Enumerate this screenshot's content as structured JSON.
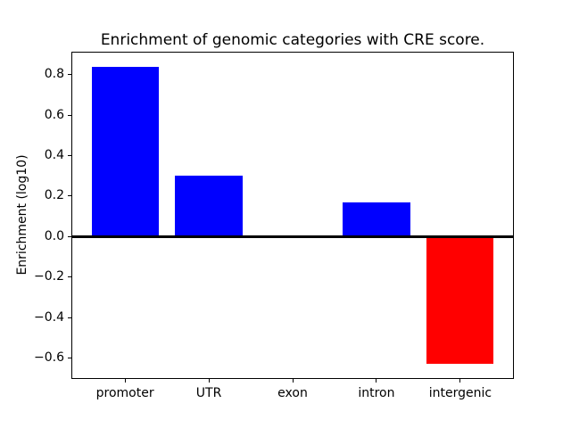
{
  "chart_data": {
    "type": "bar",
    "title": "Enrichment of genomic categories with CRE score.",
    "xlabel": "",
    "ylabel": "Enrichment (log10)",
    "categories": [
      "promoter",
      "UTR",
      "exon",
      "intron",
      "intergenic"
    ],
    "values": [
      0.84,
      0.3,
      0.0,
      0.17,
      -0.63
    ],
    "series": [
      {
        "name": "enrichment",
        "values": [
          0.84,
          0.3,
          0.0,
          0.17,
          -0.63
        ]
      }
    ],
    "positive_color": "#0000ff",
    "negative_color": "#ff0000",
    "axes_background": "#ffffff",
    "ylim": [
      -0.7035,
      0.9135
    ],
    "xlim": [
      -0.64,
      4.64
    ],
    "bar_width": 0.8,
    "yticks": [
      {
        "value": 0.8,
        "label": "0.8"
      },
      {
        "value": 0.6,
        "label": "0.6"
      },
      {
        "value": 0.4,
        "label": "0.4"
      },
      {
        "value": 0.2,
        "label": "0.2"
      },
      {
        "value": 0.0,
        "label": "0.0"
      },
      {
        "value": -0.2,
        "label": "−0.2"
      },
      {
        "value": -0.4,
        "label": "−0.4"
      },
      {
        "value": -0.6,
        "label": "−0.6"
      }
    ],
    "zero_line": true,
    "grid": false,
    "legend": null
  }
}
